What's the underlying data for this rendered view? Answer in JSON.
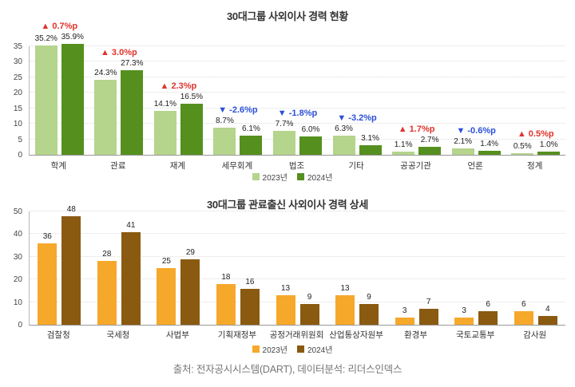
{
  "source_note": "출처: 전자공시시스템(DART), 데이터분석: 리더스인덱스",
  "colors": {
    "green_2023": "#b5d48c",
    "green_2024": "#55901e",
    "orange_2023": "#f6a82b",
    "brown_2024": "#8a5a10",
    "increase": "#e0332c",
    "decrease": "#2b50d9",
    "grid": "#dcdcdc",
    "text": "#333333"
  },
  "chart_data": [
    {
      "type": "bar",
      "title": "30대그룹 사외이사 경력 현황",
      "categories": [
        "학계",
        "관료",
        "재계",
        "세무회계",
        "법조",
        "기타",
        "공공기관",
        "언론",
        "정계"
      ],
      "series": [
        {
          "name": "2023년",
          "values": [
            35.2,
            24.3,
            14.1,
            8.7,
            7.7,
            6.3,
            1.1,
            2.1,
            0.5
          ]
        },
        {
          "name": "2024년",
          "values": [
            35.9,
            27.3,
            16.5,
            6.1,
            6.0,
            3.1,
            2.7,
            1.4,
            1.0
          ]
        }
      ],
      "value_suffix": "%",
      "value_decimals": 1,
      "diff_labels": [
        "▲ 0.7%p",
        "▲ 3.0%p",
        "▲ 2.3%p",
        "▼ -2.6%p",
        "▼ -1.8%p",
        "▼ -3.2%p",
        "▲ 1.7%p",
        "▼ -0.6%p",
        "▲ 0.5%p"
      ],
      "diff_directions": [
        "up",
        "up",
        "up",
        "down",
        "down",
        "down",
        "up",
        "down",
        "up"
      ],
      "ylim": [
        0,
        35
      ],
      "ytick_step": 5,
      "grid": true,
      "legend_position": "bottom-center"
    },
    {
      "type": "bar",
      "title": "30대그룹 관료출신 사외이사 경력 상세",
      "categories": [
        "검찰청",
        "국세청",
        "사법부",
        "기획재정부",
        "공정거래위원회",
        "산업통상자원부",
        "환경부",
        "국토교통부",
        "감사원"
      ],
      "series": [
        {
          "name": "2023년",
          "values": [
            36,
            28,
            25,
            18,
            13,
            13,
            3,
            3,
            6
          ]
        },
        {
          "name": "2024년",
          "values": [
            48,
            41,
            29,
            16,
            9,
            9,
            7,
            6,
            4
          ]
        }
      ],
      "value_suffix": "",
      "value_decimals": 0,
      "ylim": [
        0,
        50
      ],
      "ytick_step": 10,
      "grid": true,
      "legend_position": "bottom-center"
    }
  ]
}
